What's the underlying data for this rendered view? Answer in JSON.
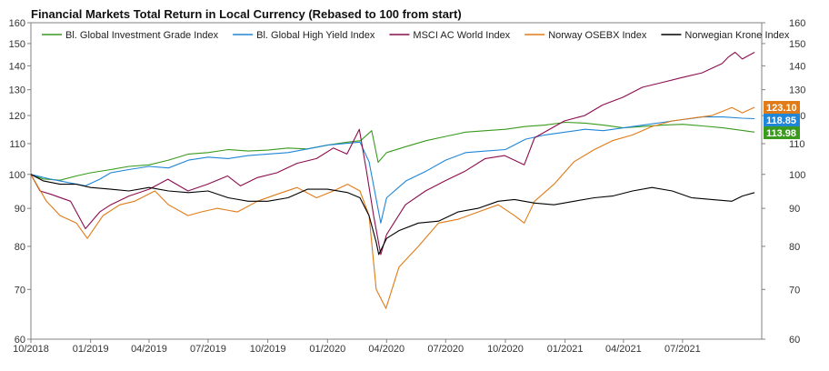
{
  "chart_data": {
    "type": "line",
    "title": "Financial Markets Total Return in Local Currency (Rebased to 100 from start)",
    "xlabel": "",
    "ylabel": "",
    "y_scale": "log",
    "ylim": [
      60,
      160
    ],
    "y_ticks": [
      60,
      70,
      80,
      90,
      100,
      110,
      120,
      130,
      140,
      150,
      160
    ],
    "x_ticks": [
      "10/2018",
      "01/2019",
      "04/2019",
      "07/2019",
      "10/2019",
      "01/2020",
      "04/2020",
      "07/2020",
      "10/2020",
      "01/2021",
      "04/2021",
      "07/2021"
    ],
    "x_tick_dates": [
      "2018-10-01",
      "2019-01-01",
      "2019-04-01",
      "2019-07-01",
      "2019-10-01",
      "2020-01-01",
      "2020-04-01",
      "2020-07-01",
      "2020-10-01",
      "2021-01-01",
      "2021-04-01",
      "2021-07-01"
    ],
    "xlim": [
      "2018-10-01",
      "2021-10-31"
    ],
    "grid": false,
    "legend_position": "top",
    "series": [
      {
        "name": "Bl. Global Investment Grade Index",
        "color": "#3a9a1e",
        "end_label": "113.98",
        "dates": [
          "2018-10-01",
          "2018-10-20",
          "2018-11-15",
          "2018-12-10",
          "2019-01-01",
          "2019-02-01",
          "2019-03-01",
          "2019-04-01",
          "2019-05-01",
          "2019-06-01",
          "2019-07-01",
          "2019-08-01",
          "2019-09-01",
          "2019-10-01",
          "2019-11-01",
          "2019-12-01",
          "2020-01-01",
          "2020-02-01",
          "2020-02-21",
          "2020-03-09",
          "2020-03-19",
          "2020-04-01",
          "2020-05-01",
          "2020-06-01",
          "2020-07-01",
          "2020-08-01",
          "2020-09-01",
          "2020-10-01",
          "2020-11-01",
          "2020-12-01",
          "2021-01-01",
          "2021-02-01",
          "2021-03-01",
          "2021-04-01",
          "2021-05-01",
          "2021-06-01",
          "2021-07-01",
          "2021-08-01",
          "2021-09-01",
          "2021-10-01",
          "2021-10-20"
        ],
        "values": [
          100,
          98.6,
          98.2,
          99.5,
          100.5,
          101.5,
          102.5,
          103,
          104.5,
          106.5,
          107,
          108,
          107.5,
          107.8,
          108.5,
          108.2,
          109.5,
          110.5,
          111,
          114.5,
          103.8,
          107,
          109,
          111,
          112.5,
          114,
          114.5,
          115,
          116,
          116.5,
          117.5,
          117.2,
          116.5,
          115.5,
          116,
          116.5,
          116.8,
          116.2,
          115.5,
          114.6,
          113.98
        ]
      },
      {
        "name": "Bl. Global High Yield Index",
        "color": "#1f86d8",
        "end_label": "118.85",
        "dates": [
          "2018-10-01",
          "2018-11-01",
          "2018-12-24",
          "2019-01-15",
          "2019-02-01",
          "2019-03-01",
          "2019-04-01",
          "2019-05-01",
          "2019-06-01",
          "2019-07-01",
          "2019-08-01",
          "2019-09-01",
          "2019-10-01",
          "2019-11-01",
          "2019-12-01",
          "2020-01-01",
          "2020-02-20",
          "2020-03-05",
          "2020-03-23",
          "2020-04-01",
          "2020-05-01",
          "2020-06-01",
          "2020-07-01",
          "2020-08-01",
          "2020-09-01",
          "2020-10-01",
          "2020-11-01",
          "2020-12-01",
          "2021-01-01",
          "2021-02-01",
          "2021-03-01",
          "2021-04-01",
          "2021-05-01",
          "2021-06-01",
          "2021-07-01",
          "2021-08-01",
          "2021-09-01",
          "2021-10-01",
          "2021-10-20"
        ],
        "values": [
          100,
          98.5,
          96.5,
          98.5,
          100.5,
          101.5,
          102.5,
          102,
          104.5,
          105.5,
          105,
          106,
          106.5,
          107,
          108.2,
          109.5,
          110.5,
          104,
          86,
          93,
          98,
          101,
          104.5,
          107,
          107.5,
          108,
          111.5,
          113,
          114,
          115,
          114.5,
          115.5,
          116.5,
          117.5,
          118.5,
          119.5,
          119.5,
          119,
          118.85
        ]
      },
      {
        "name": "MSCI AC World Index",
        "color": "#8b0d4e",
        "end_label": null,
        "dates": [
          "2018-10-01",
          "2018-10-15",
          "2018-11-01",
          "2018-12-01",
          "2018-12-24",
          "2019-01-15",
          "2019-02-01",
          "2019-03-01",
          "2019-04-01",
          "2019-04-30",
          "2019-05-31",
          "2019-06-30",
          "2019-07-31",
          "2019-08-20",
          "2019-09-15",
          "2019-10-15",
          "2019-11-15",
          "2019-12-15",
          "2020-01-10",
          "2020-01-31",
          "2020-02-19",
          "2020-03-01",
          "2020-03-12",
          "2020-03-23",
          "2020-04-01",
          "2020-04-30",
          "2020-05-31",
          "2020-06-30",
          "2020-07-31",
          "2020-08-31",
          "2020-09-30",
          "2020-10-30",
          "2020-11-15",
          "2020-12-31",
          "2021-01-31",
          "2021-02-28",
          "2021-03-31",
          "2021-04-30",
          "2021-05-31",
          "2021-06-30",
          "2021-07-31",
          "2021-08-31",
          "2021-09-10",
          "2021-09-20",
          "2021-10-01",
          "2021-10-20"
        ],
        "values": [
          100,
          95,
          94,
          92,
          84.5,
          89,
          91,
          93.5,
          95.5,
          98.5,
          95,
          97,
          99.5,
          96.5,
          99,
          100.5,
          103.5,
          105,
          108.5,
          106.5,
          115,
          101,
          88,
          78,
          83,
          91,
          95,
          98,
          101,
          105,
          106,
          103,
          112,
          118,
          120,
          124,
          127,
          131,
          133,
          135,
          137,
          141,
          144,
          146,
          143,
          146
        ]
      },
      {
        "name": "Norway OSEBX Index",
        "color": "#e07b17",
        "end_label": "123.10",
        "dates": [
          "2018-10-01",
          "2018-10-25",
          "2018-11-15",
          "2018-12-10",
          "2018-12-27",
          "2019-01-20",
          "2019-02-15",
          "2019-03-10",
          "2019-04-10",
          "2019-05-01",
          "2019-05-31",
          "2019-06-20",
          "2019-07-15",
          "2019-08-15",
          "2019-09-15",
          "2019-10-15",
          "2019-11-15",
          "2019-12-15",
          "2020-01-10",
          "2020-02-01",
          "2020-02-20",
          "2020-03-05",
          "2020-03-16",
          "2020-03-31",
          "2020-04-20",
          "2020-05-20",
          "2020-06-20",
          "2020-07-20",
          "2020-08-20",
          "2020-09-20",
          "2020-10-15",
          "2020-10-30",
          "2020-11-15",
          "2020-12-15",
          "2021-01-15",
          "2021-02-15",
          "2021-03-15",
          "2021-04-15",
          "2021-05-15",
          "2021-06-15",
          "2021-07-15",
          "2021-08-15",
          "2021-09-15",
          "2021-10-01",
          "2021-10-20"
        ],
        "values": [
          100,
          92,
          88,
          86,
          82,
          88,
          91,
          92,
          95,
          91,
          88,
          89,
          90,
          89,
          92,
          94,
          96,
          93,
          95,
          97,
          95,
          88,
          70,
          66,
          75,
          80,
          86,
          87,
          89,
          91,
          88,
          86,
          92,
          97,
          104,
          108,
          111,
          113,
          116,
          118,
          119,
          120,
          123,
          121,
          123.1
        ]
      },
      {
        "name": "Norwegian Krone Index",
        "color": "#000000",
        "end_label": null,
        "dates": [
          "2018-10-01",
          "2018-10-20",
          "2018-11-15",
          "2018-12-10",
          "2019-01-01",
          "2019-02-01",
          "2019-03-01",
          "2019-04-01",
          "2019-05-01",
          "2019-06-01",
          "2019-07-01",
          "2019-08-01",
          "2019-09-01",
          "2019-10-01",
          "2019-11-01",
          "2019-12-01",
          "2020-01-01",
          "2020-02-01",
          "2020-02-20",
          "2020-03-05",
          "2020-03-16",
          "2020-03-20",
          "2020-04-01",
          "2020-04-20",
          "2020-05-20",
          "2020-06-20",
          "2020-07-20",
          "2020-08-20",
          "2020-09-20",
          "2020-10-15",
          "2020-11-15",
          "2020-12-15",
          "2021-01-15",
          "2021-02-15",
          "2021-03-15",
          "2021-04-15",
          "2021-05-15",
          "2021-06-15",
          "2021-07-15",
          "2021-08-15",
          "2021-09-15",
          "2021-10-01",
          "2021-10-20"
        ],
        "values": [
          100,
          98,
          97,
          97,
          96,
          95.5,
          95,
          96,
          95,
          94.5,
          95,
          93,
          92,
          92,
          93,
          95.5,
          95.5,
          94.5,
          93,
          88,
          81,
          78,
          82,
          84,
          86,
          86.5,
          89,
          90,
          92,
          92.5,
          91.5,
          91,
          92,
          93,
          93.5,
          95,
          96,
          95,
          93,
          92.5,
          92,
          93.5,
          94.5
        ]
      }
    ]
  }
}
